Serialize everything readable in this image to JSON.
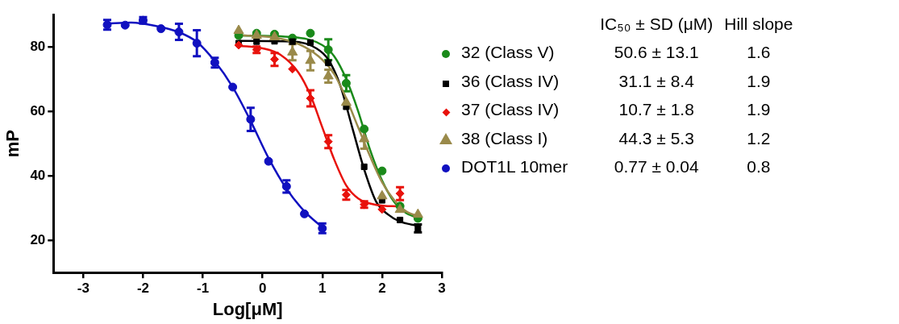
{
  "chart_data": {
    "type": "scatter",
    "xlabel": "Log[μM]",
    "ylabel": "mP",
    "xlim": [
      -3.5,
      3
    ],
    "xticks": [
      -3,
      -2,
      -1,
      0,
      1,
      2,
      3
    ],
    "ylim": [
      10,
      90
    ],
    "yticks": [
      20,
      40,
      60,
      80
    ],
    "grid": false,
    "legend": "right",
    "annotations": [
      "IC₅₀ ± SD (μM)",
      "Hill slope",
      "50.6 ± 13.1",
      "1.6",
      "31.1 ± 8.4",
      "1.9",
      "10.7 ± 1.8",
      "1.9",
      "44.3 ± 5.3",
      "1.2",
      "0.77 ± 0.04",
      "0.8"
    ],
    "series": [
      {
        "name": "32 (Class V)",
        "type": "scatter",
        "marker": "circle",
        "color": "#1a8a1a",
        "x": [
          -0.4,
          -0.1,
          0.2,
          0.5,
          0.8,
          1.1,
          1.4,
          1.7,
          2.0,
          2.3,
          2.6
        ],
        "values": [
          83.5,
          84.2,
          83.9,
          82.7,
          84.2,
          79.1,
          68.7,
          54.5,
          41.5,
          30.6,
          26.8
        ],
        "errors": [
          null,
          null,
          null,
          null,
          null,
          3.2,
          2.5,
          null,
          null,
          null,
          null
        ]
      },
      {
        "name": "36 (Class IV)",
        "type": "scatter",
        "marker": "square",
        "color": "#000000",
        "x": [
          -0.4,
          -0.1,
          0.2,
          0.5,
          0.8,
          1.1,
          1.4,
          1.7,
          2.0,
          2.3,
          2.6
        ],
        "values": [
          81.1,
          81.6,
          81.7,
          81.6,
          81.3,
          75.0,
          61.4,
          42.8,
          32.4,
          26.3,
          23.7
        ],
        "errors": [
          null,
          null,
          null,
          null,
          null,
          null,
          null,
          null,
          null,
          null,
          1.2
        ]
      },
      {
        "name": "37 (Class IV)",
        "type": "scatter",
        "marker": "diamond",
        "color": "#e8120c",
        "x": [
          -0.4,
          -0.1,
          0.2,
          0.5,
          0.8,
          1.1,
          1.4,
          1.7,
          2.0,
          2.3
        ],
        "values": [
          80.5,
          79.1,
          76.1,
          73.1,
          64.0,
          50.6,
          34.1,
          31.1,
          29.6,
          34.5
        ],
        "errors": [
          null,
          1,
          2,
          null,
          2.5,
          2,
          1.5,
          1,
          null,
          2
        ]
      },
      {
        "name": "DOT1L 10mer",
        "type": "scatter",
        "marker": "circle",
        "color": "#1010c0",
        "x": [
          -2.6,
          -2.3,
          -2.0,
          -1.7,
          -1.4,
          -1.1,
          -0.8,
          -0.5,
          -0.2,
          0.1,
          0.4,
          0.7,
          1.0
        ],
        "values": [
          86.8,
          86.7,
          88.2,
          85.6,
          84.6,
          81.1,
          75.1,
          67.5,
          57.5,
          44.5,
          36.7,
          28.2,
          23.7
        ],
        "errors": [
          1.5,
          null,
          1,
          null,
          2.5,
          4,
          1.5,
          null,
          3.6,
          null,
          1.9,
          null,
          1.5
        ]
      },
      {
        "name": "38 (Class I)",
        "type": "scatter",
        "marker": "triangle",
        "color": "#9a8a4a",
        "x": [
          -0.4,
          -0.1,
          0.2,
          0.5,
          0.8,
          1.1,
          1.4,
          1.7,
          2.0,
          2.3,
          2.6
        ],
        "values": [
          85.0,
          83.5,
          83.0,
          78.3,
          75.7,
          70.9,
          62.7,
          51.4,
          33.7,
          29.5,
          28.0
        ],
        "errors": [
          null,
          null,
          null,
          2.5,
          3,
          2,
          null,
          3,
          null,
          null,
          null
        ]
      },
      {
        "type": "line",
        "marker": "none",
        "color": "#1a8a1a",
        "x": [
          -0.4,
          0.5,
          1.0,
          1.2,
          1.4,
          1.6,
          1.8,
          2.0,
          2.2,
          2.4,
          2.6
        ],
        "values": [
          83.5,
          83,
          80.5,
          77,
          70,
          60,
          48,
          38.5,
          32,
          28.5,
          27
        ]
      },
      {
        "type": "line",
        "marker": "none",
        "color": "#000000",
        "x": [
          -0.4,
          0.5,
          0.9,
          1.1,
          1.3,
          1.5,
          1.7,
          1.9,
          2.1,
          2.3,
          2.6
        ],
        "values": [
          81.8,
          81.6,
          79.5,
          76,
          68,
          55,
          42,
          32,
          28,
          25.8,
          24.5
        ]
      },
      {
        "type": "line",
        "marker": "none",
        "color": "#e8120c",
        "x": [
          -0.4,
          0,
          0.3,
          0.6,
          0.8,
          1.0,
          1.2,
          1.4,
          1.6,
          1.9,
          2.3
        ],
        "values": [
          80.3,
          79.5,
          77.5,
          72,
          65,
          55,
          45,
          37,
          33,
          31,
          30.5
        ]
      },
      {
        "type": "line",
        "marker": "none",
        "color": "#9a8a4a",
        "x": [
          -0.4,
          0.3,
          0.7,
          1.0,
          1.2,
          1.4,
          1.6,
          1.8,
          2.0,
          2.2,
          2.4,
          2.6
        ],
        "values": [
          83.6,
          82.5,
          80,
          76,
          71.5,
          64,
          55,
          46,
          38,
          32.5,
          29,
          27.5
        ]
      },
      {
        "type": "line",
        "marker": "none",
        "color": "#1010c0",
        "x": [
          -2.6,
          -2.2,
          -1.8,
          -1.4,
          -1.1,
          -0.8,
          -0.5,
          -0.2,
          0.1,
          0.4,
          0.7,
          1.0
        ],
        "values": [
          87.2,
          87.5,
          86.5,
          84.5,
          81.5,
          75.5,
          67.5,
          57,
          45.5,
          36,
          29,
          24
        ]
      }
    ]
  }
}
